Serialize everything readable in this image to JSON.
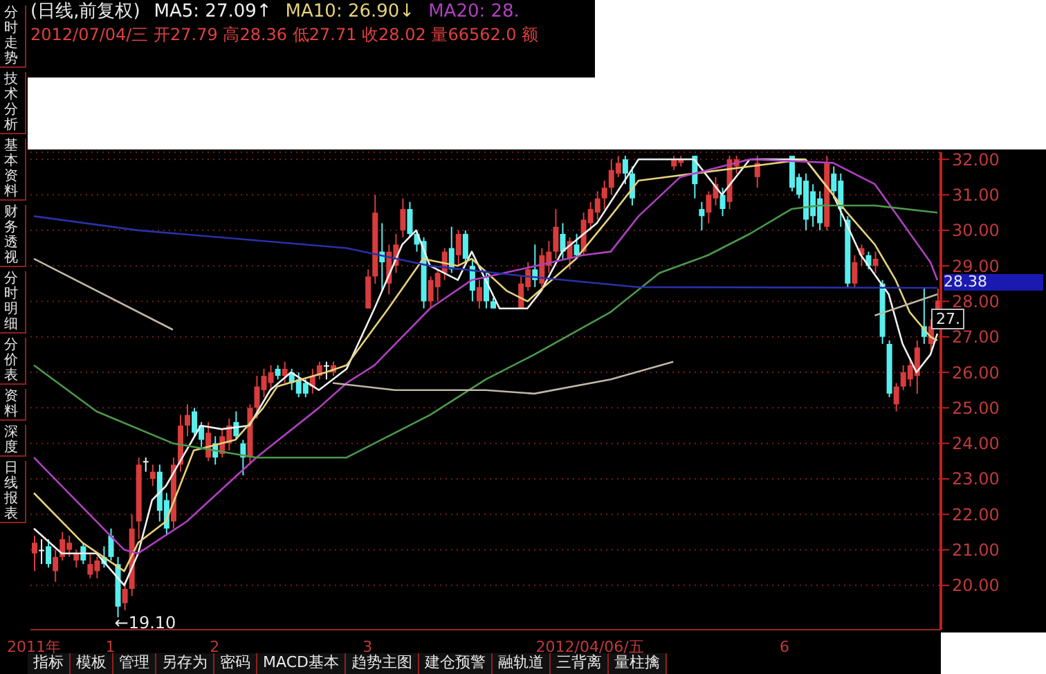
{
  "chart_data": {
    "type": "candlestick",
    "title": "(日线,前复权)",
    "subtitle": "2012/07/04/三 开27.79 高28.36 低27.71 收28.02 量66562.0 额",
    "annotations": [
      "MA5: 27.09↑",
      "MA10: 26.90↓",
      "MA20: 28.",
      "←19.10",
      "28.38",
      "27.",
      "分时走势",
      "技术分析",
      "基本资料",
      "财务透视",
      "分时明细",
      "分价表",
      "资料",
      "深度",
      "日线报表",
      "指标",
      "模板",
      "管理",
      "另存为",
      "密码",
      "MACD基本",
      "趋势主图",
      "建仓预警",
      "融轨道",
      "三背离",
      "量柱擒"
    ],
    "categories": [
      "2011年",
      null,
      null,
      null,
      null,
      null,
      null,
      null,
      null,
      null,
      null,
      "1",
      null,
      null,
      null,
      null,
      null,
      null,
      null,
      null,
      null,
      null,
      null,
      null,
      null,
      null,
      "2",
      null,
      null,
      null,
      null,
      null,
      null,
      null,
      null,
      null,
      null,
      null,
      null,
      null,
      null,
      null,
      null,
      null,
      null,
      null,
      null,
      null,
      "3",
      null,
      null,
      null,
      null,
      null,
      null,
      null,
      null,
      null,
      null,
      null,
      null,
      null,
      null,
      null,
      null,
      null,
      null,
      null,
      null,
      null,
      null,
      null,
      null,
      null,
      null,
      null,
      null,
      null,
      null,
      null,
      "2012/04/06/五",
      null,
      null,
      null,
      null,
      null,
      null,
      null,
      null,
      null,
      null,
      null,
      null,
      null,
      null,
      null,
      null,
      null,
      null,
      null,
      null,
      null,
      null,
      null,
      null,
      null,
      null,
      null,
      "6",
      null,
      null,
      null,
      null,
      null,
      null,
      null,
      null,
      null,
      null,
      null,
      null,
      null,
      null,
      null,
      null,
      null,
      null,
      null,
      null,
      null,
      null
    ],
    "ohlc": [
      [
        20.9,
        21.4,
        20.4,
        21.2
      ],
      [
        21.0,
        21.3,
        20.6,
        21.0
      ],
      [
        21.1,
        21.3,
        20.5,
        20.6
      ],
      [
        20.4,
        21.0,
        20.1,
        20.8
      ],
      [
        20.8,
        21.5,
        20.7,
        21.3
      ],
      [
        21.0,
        21.4,
        20.8,
        21.2
      ],
      [
        20.7,
        21.0,
        20.5,
        20.9
      ],
      [
        21.1,
        21.2,
        20.6,
        20.7
      ],
      [
        20.3,
        20.9,
        20.2,
        20.6
      ],
      [
        20.4,
        20.8,
        20.2,
        20.7
      ],
      [
        20.8,
        21.1,
        20.5,
        20.6
      ],
      [
        21.4,
        21.6,
        20.7,
        20.8
      ],
      [
        20.6,
        20.8,
        19.1,
        19.4
      ],
      [
        19.5,
        20.1,
        19.3,
        19.9
      ],
      [
        19.9,
        22.0,
        19.7,
        21.6
      ],
      [
        21.8,
        23.6,
        21.3,
        23.4
      ],
      [
        23.5,
        23.6,
        23.2,
        23.5
      ],
      [
        23.0,
        23.4,
        22.8,
        23.2
      ],
      [
        23.2,
        23.4,
        21.8,
        22.1
      ],
      [
        22.4,
        22.6,
        21.4,
        21.6
      ],
      [
        21.8,
        23.6,
        21.6,
        23.4
      ],
      [
        23.4,
        24.8,
        23.2,
        24.5
      ],
      [
        24.5,
        25.1,
        24.2,
        24.8
      ],
      [
        24.9,
        25.0,
        24.2,
        24.3
      ],
      [
        24.5,
        24.6,
        23.9,
        24.1
      ],
      [
        23.6,
        24.6,
        23.5,
        24.3
      ],
      [
        24.0,
        24.2,
        23.4,
        23.6
      ],
      [
        23.7,
        24.4,
        23.6,
        24.2
      ],
      [
        24.0,
        24.7,
        23.8,
        24.5
      ],
      [
        24.6,
        24.9,
        24.1,
        24.2
      ],
      [
        24.0,
        24.1,
        23.1,
        23.6
      ],
      [
        23.6,
        25.1,
        23.4,
        25.0
      ],
      [
        25.0,
        25.9,
        24.7,
        25.6
      ],
      [
        25.5,
        26.1,
        25.3,
        25.9
      ],
      [
        25.7,
        26.2,
        25.5,
        26.0
      ],
      [
        26.1,
        26.2,
        25.8,
        25.9
      ],
      [
        25.9,
        26.3,
        25.7,
        26.1
      ],
      [
        26.0,
        26.1,
        25.5,
        25.7
      ],
      [
        25.8,
        26.0,
        25.3,
        25.4
      ],
      [
        25.7,
        25.8,
        25.3,
        25.4
      ],
      [
        25.6,
        26.1,
        25.4,
        25.9
      ],
      [
        25.9,
        26.3,
        25.8,
        26.2
      ],
      [
        26.2,
        26.3,
        25.8,
        26.2
      ],
      [
        26.0,
        26.3,
        25.9,
        26.2
      ],
      null,
      null,
      null,
      null,
      [
        27.8,
        28.9,
        27.8,
        28.7
      ],
      [
        28.7,
        31.0,
        28.5,
        30.5
      ],
      [
        29.4,
        30.2,
        28.3,
        29.1
      ],
      [
        28.5,
        29.6,
        28.2,
        29.4
      ],
      [
        29.0,
        29.9,
        28.8,
        29.6
      ],
      [
        30.0,
        30.9,
        29.8,
        30.6
      ],
      [
        30.6,
        30.8,
        29.8,
        29.9
      ],
      [
        29.9,
        30.0,
        29.4,
        29.6
      ],
      [
        29.7,
        29.8,
        27.8,
        28.0
      ],
      [
        28.0,
        28.7,
        27.8,
        28.6
      ],
      [
        28.4,
        28.9,
        28.0,
        28.8
      ],
      [
        28.8,
        29.5,
        28.6,
        29.4
      ],
      [
        29.5,
        30.1,
        28.8,
        28.9
      ],
      [
        29.3,
        30.0,
        29.0,
        29.9
      ],
      [
        29.9,
        30.0,
        29.1,
        29.2
      ],
      [
        29.0,
        29.2,
        28.0,
        28.3
      ],
      [
        28.0,
        28.6,
        27.8,
        28.4
      ],
      [
        28.7,
        28.8,
        27.8,
        28.0
      ],
      [
        28.0,
        28.1,
        27.8,
        27.8
      ],
      null,
      null,
      null,
      [
        27.8,
        28.7,
        27.8,
        28.5
      ],
      [
        28.4,
        29.1,
        28.3,
        28.9
      ],
      [
        28.9,
        29.6,
        28.4,
        28.6
      ],
      [
        28.5,
        29.5,
        28.4,
        29.3
      ],
      [
        29.0,
        29.7,
        28.8,
        29.4
      ],
      [
        29.4,
        30.6,
        29.2,
        30.1
      ],
      [
        29.9,
        30.2,
        29.2,
        29.4
      ],
      [
        29.2,
        29.8,
        28.9,
        29.7
      ],
      [
        29.6,
        29.9,
        29.2,
        29.3
      ],
      [
        29.4,
        30.5,
        29.3,
        30.3
      ],
      [
        30.2,
        30.8,
        30.0,
        30.6
      ],
      [
        30.5,
        31.1,
        30.3,
        30.9
      ],
      [
        30.9,
        31.4,
        30.6,
        31.2
      ],
      [
        31.2,
        32.0,
        31.0,
        31.7
      ],
      [
        31.6,
        32.1,
        31.5,
        31.9
      ],
      [
        32.0,
        32.1,
        31.3,
        31.6
      ],
      [
        31.6,
        31.8,
        30.7,
        30.9
      ],
      null,
      null,
      null,
      null,
      null,
      [
        31.8,
        32.1,
        31.7,
        32.0
      ],
      [
        31.9,
        32.1,
        31.8,
        32.0
      ],
      null,
      [
        32.1,
        32.1,
        30.9,
        31.3
      ],
      [
        30.6,
        30.8,
        30.0,
        30.4
      ],
      [
        30.5,
        31.1,
        30.2,
        31.0
      ],
      [
        30.9,
        31.5,
        30.7,
        31.3
      ],
      [
        31.0,
        31.2,
        30.4,
        30.6
      ],
      [
        30.8,
        32.1,
        30.6,
        32.0
      ],
      [
        31.8,
        32.1,
        31.6,
        32.0
      ],
      null,
      null,
      [
        31.5,
        32.1,
        31.2,
        31.9
      ],
      null,
      null,
      null,
      null,
      [
        32.1,
        32.1,
        31.1,
        31.2
      ],
      [
        31.5,
        31.6,
        30.9,
        31.0
      ],
      [
        31.4,
        31.6,
        30.0,
        30.3
      ],
      [
        31.1,
        31.3,
        30.1,
        30.4
      ],
      [
        30.9,
        31.1,
        30.0,
        30.2
      ],
      [
        30.1,
        32.1,
        30.0,
        31.9
      ],
      [
        31.6,
        31.8,
        30.9,
        31.1
      ],
      [
        31.4,
        31.6,
        30.1,
        30.6
      ],
      [
        30.3,
        30.4,
        28.4,
        28.5
      ],
      [
        28.5,
        29.3,
        28.4,
        29.1
      ],
      [
        29.3,
        29.6,
        29.0,
        29.5
      ],
      [
        29.3,
        29.4,
        28.9,
        29.0
      ],
      [
        29.0,
        29.4,
        28.8,
        29.2
      ],
      [
        28.5,
        28.6,
        26.8,
        27.0
      ],
      [
        26.8,
        26.9,
        25.3,
        25.4
      ],
      [
        25.1,
        25.7,
        24.9,
        25.6
      ],
      [
        25.6,
        26.2,
        25.5,
        26.0
      ],
      [
        25.8,
        26.4,
        25.6,
        26.2
      ],
      [
        25.9,
        26.9,
        25.4,
        26.7
      ],
      [
        27.3,
        28.4,
        26.8,
        27.0
      ],
      [
        26.8,
        27.5,
        26.6,
        27.3
      ],
      [
        27.79,
        28.36,
        27.71,
        28.02
      ]
    ],
    "series": [
      {
        "type": "line",
        "color": "#f0f0f0",
        "values": [
          21.6,
          null,
          null,
          null,
          20.9,
          null,
          null,
          null,
          null,
          20.9,
          null,
          null,
          null,
          20.0,
          null,
          20.9,
          null,
          22.4,
          null,
          22.8,
          null,
          null,
          null,
          null,
          24.5,
          null,
          null,
          24.4,
          null,
          null,
          null,
          24.5,
          null,
          null,
          25.5,
          null,
          null,
          26.0,
          null,
          null,
          null,
          25.5,
          null,
          null,
          null,
          26.1,
          null,
          null,
          null,
          27.8,
          null,
          null,
          null,
          29.6,
          null,
          30.0,
          null,
          29.0,
          null,
          null,
          null,
          28.6,
          null,
          29.4,
          null,
          28.6,
          null,
          27.8,
          null,
          null,
          null,
          27.8,
          null,
          28.3,
          null,
          null,
          29.4,
          null,
          null,
          null,
          null,
          30.2,
          null,
          null,
          null,
          31.4,
          null,
          32.0,
          null,
          null,
          null,
          null,
          null,
          null,
          null,
          32.0,
          null,
          null,
          null,
          31.0,
          null,
          null,
          null,
          32.0,
          null,
          null,
          null,
          null,
          null,
          null,
          null,
          32.0,
          null,
          null,
          null,
          31.0,
          null,
          null,
          null,
          29.3,
          null,
          null,
          null,
          28.2,
          null,
          26.8,
          null,
          26.0,
          null,
          26.5,
          27.09
        ]
      },
      {
        "type": "line",
        "color": "#e6d27a",
        "values": [
          22.6,
          null,
          null,
          null,
          null,
          null,
          null,
          21.2,
          null,
          null,
          null,
          null,
          null,
          20.4,
          null,
          21.2,
          null,
          null,
          null,
          21.8,
          null,
          null,
          null,
          23.8,
          null,
          null,
          null,
          null,
          null,
          24.1,
          null,
          null,
          null,
          25.0,
          null,
          25.6,
          null,
          null,
          null,
          null,
          null,
          null,
          26.0,
          null,
          null,
          26.2,
          null,
          null,
          null,
          null,
          null,
          27.8,
          null,
          null,
          null,
          null,
          29.2,
          null,
          null,
          null,
          null,
          29.0,
          null,
          29.2,
          null,
          null,
          null,
          null,
          28.3,
          null,
          null,
          28.0,
          null,
          null,
          null,
          null,
          null,
          null,
          29.2,
          null,
          null,
          null,
          null,
          30.4,
          null,
          null,
          null,
          31.4,
          null,
          null,
          null,
          null,
          null,
          null,
          null,
          null,
          null,
          null,
          null,
          null,
          null,
          null,
          null,
          null,
          null,
          null,
          null,
          null,
          null,
          null,
          null,
          32.0,
          null,
          null,
          null,
          null,
          null,
          30.5,
          null,
          null,
          null,
          29.6,
          null,
          null,
          28.6,
          null,
          27.7,
          null,
          null,
          27.0,
          26.9
        ]
      },
      {
        "type": "line",
        "color": "#b040c0",
        "values": [
          23.6,
          null,
          null,
          null,
          null,
          null,
          null,
          null,
          null,
          null,
          null,
          null,
          null,
          21.0,
          null,
          20.9,
          null,
          null,
          null,
          null,
          null,
          null,
          21.8,
          null,
          null,
          null,
          null,
          null,
          null,
          null,
          null,
          null,
          23.6,
          null,
          null,
          null,
          null,
          null,
          null,
          null,
          null,
          25.0,
          null,
          null,
          null,
          25.7,
          null,
          null,
          null,
          26.2,
          null,
          null,
          null,
          null,
          null,
          null,
          null,
          27.8,
          null,
          null,
          null,
          null,
          null,
          28.6,
          null,
          null,
          null,
          null,
          null,
          null,
          28.9,
          null,
          null,
          null,
          null,
          null,
          null,
          null,
          null,
          29.3,
          null,
          null,
          null,
          29.4,
          null,
          null,
          null,
          30.4,
          null,
          null,
          null,
          null,
          null,
          31.5,
          null,
          null,
          null,
          null,
          null,
          null,
          null,
          null,
          null,
          32.0,
          null,
          null,
          null,
          null,
          null,
          null,
          null,
          null,
          null,
          null,
          null,
          31.9,
          null,
          null,
          null,
          null,
          null,
          31.3,
          null,
          null,
          null,
          30.2,
          null,
          null,
          null,
          29.1,
          28.6
        ]
      },
      {
        "type": "line",
        "color": "#4c9a4c",
        "values": [
          26.2,
          null,
          null,
          null,
          null,
          null,
          null,
          null,
          null,
          24.9,
          null,
          null,
          null,
          null,
          null,
          null,
          null,
          null,
          null,
          null,
          24.0,
          null,
          null,
          null,
          null,
          null,
          null,
          null,
          null,
          null,
          null,
          null,
          23.6,
          null,
          null,
          null,
          null,
          null,
          null,
          null,
          null,
          null,
          null,
          null,
          null,
          23.6,
          null,
          null,
          null,
          null,
          null,
          null,
          null,
          null,
          null,
          null,
          null,
          24.8,
          null,
          null,
          null,
          null,
          null,
          null,
          null,
          25.8,
          null,
          null,
          null,
          null,
          null,
          null,
          26.5,
          null,
          null,
          null,
          null,
          null,
          null,
          null,
          null,
          null,
          null,
          27.7,
          null,
          null,
          null,
          null,
          null,
          null,
          28.8,
          null,
          null,
          null,
          null,
          null,
          null,
          29.3,
          null,
          null,
          null,
          null,
          null,
          29.9,
          null,
          null,
          null,
          null,
          null,
          30.6,
          null,
          null,
          null,
          30.7,
          null,
          null,
          null,
          null,
          null,
          null,
          null,
          30.7,
          null,
          null,
          null,
          null,
          null,
          null,
          null,
          null,
          30.5
        ]
      },
      {
        "type": "line",
        "color": "#2a30a8",
        "values": [
          30.4,
          null,
          null,
          null,
          null,
          null,
          null,
          null,
          null,
          null,
          null,
          null,
          null,
          null,
          null,
          30.0,
          null,
          null,
          null,
          null,
          null,
          null,
          null,
          null,
          null,
          null,
          null,
          null,
          null,
          null,
          null,
          null,
          null,
          null,
          null,
          null,
          null,
          null,
          null,
          null,
          null,
          null,
          null,
          null,
          null,
          29.5,
          null,
          null,
          null,
          null,
          null,
          null,
          null,
          null,
          null,
          null,
          null,
          29.0,
          null,
          null,
          null,
          null,
          null,
          null,
          null,
          null,
          null,
          null,
          null,
          null,
          null,
          28.7,
          null,
          null,
          null,
          null,
          null,
          null,
          null,
          null,
          null,
          null,
          null,
          null,
          null,
          null,
          null,
          28.4,
          null,
          null,
          null,
          null,
          null,
          null,
          null,
          null,
          null,
          null,
          null,
          null,
          null,
          null,
          null,
          null,
          null,
          null,
          null,
          null,
          null,
          null,
          null,
          null,
          null,
          null,
          null,
          null,
          null,
          null,
          null,
          null,
          null,
          null,
          null,
          null,
          null,
          null,
          null,
          null,
          null,
          null,
          28.38
        ]
      },
      {
        "type": "line",
        "color": "#bfb6a6",
        "values": [
          29.2,
          null,
          null,
          null,
          null,
          null,
          null,
          null,
          null,
          null,
          null,
          null,
          null,
          null,
          null,
          null,
          null,
          null,
          null,
          null,
          27.2,
          null,
          null,
          null,
          null,
          null,
          null,
          null,
          null,
          null,
          null,
          null,
          null,
          null,
          null,
          null,
          null,
          null,
          null,
          null,
          null,
          null,
          null,
          null,
          null,
          null,
          null,
          null,
          null,
          null,
          null,
          null,
          null,
          null,
          null,
          null,
          null,
          null,
          null,
          null,
          null,
          null,
          null,
          null,
          null,
          null,
          null,
          null,
          null,
          null,
          null,
          null,
          null,
          null,
          null,
          null,
          null,
          null,
          null,
          null,
          null,
          null,
          null,
          null,
          null,
          null,
          null,
          null,
          null,
          null,
          null,
          null,
          null,
          null,
          null,
          null,
          null,
          null,
          null,
          null,
          null,
          null,
          null,
          null,
          null,
          null,
          null,
          null,
          null,
          null,
          null,
          null,
          null,
          null,
          null,
          null,
          null,
          null,
          null,
          null,
          null,
          null,
          null,
          null,
          null,
          null,
          null,
          null,
          null,
          null,
          null
        ]
      },
      {
        "type": "line",
        "color": "#bfb6a6",
        "values": [
          null,
          null,
          null,
          null,
          null,
          null,
          null,
          null,
          null,
          null,
          null,
          null,
          null,
          null,
          null,
          null,
          null,
          null,
          null,
          null,
          null,
          null,
          null,
          null,
          null,
          null,
          null,
          null,
          null,
          null,
          null,
          null,
          null,
          null,
          null,
          null,
          null,
          null,
          null,
          null,
          null,
          null,
          null,
          25.7,
          null,
          null,
          null,
          null,
          null,
          null,
          null,
          null,
          25.5,
          null,
          null,
          null,
          null,
          null,
          null,
          null,
          null,
          null,
          null,
          null,
          null,
          25.5,
          null,
          null,
          null,
          null,
          null,
          null,
          25.4,
          null,
          null,
          null,
          null,
          null,
          null,
          null,
          null,
          null,
          null,
          25.8,
          null,
          null,
          null,
          null,
          null,
          null,
          null,
          null,
          26.3,
          null,
          null,
          null,
          null,
          null,
          null,
          null,
          null,
          null,
          null,
          null,
          null,
          null,
          null,
          null,
          null,
          null,
          null,
          null,
          null,
          null,
          null,
          null,
          null,
          null,
          null,
          null,
          null,
          null,
          null,
          null,
          null,
          null,
          null,
          null,
          null,
          null,
          null
        ]
      },
      {
        "type": "line",
        "color": "#bfb6a6",
        "values": [
          null,
          null,
          null,
          null,
          null,
          null,
          null,
          null,
          null,
          null,
          null,
          null,
          null,
          null,
          null,
          null,
          null,
          null,
          null,
          null,
          null,
          null,
          null,
          null,
          null,
          null,
          null,
          null,
          null,
          null,
          null,
          null,
          null,
          null,
          null,
          null,
          null,
          null,
          null,
          null,
          null,
          null,
          null,
          null,
          null,
          null,
          null,
          null,
          null,
          null,
          null,
          null,
          null,
          null,
          null,
          null,
          null,
          null,
          null,
          null,
          null,
          null,
          null,
          null,
          null,
          null,
          null,
          null,
          null,
          null,
          null,
          null,
          null,
          null,
          null,
          null,
          null,
          null,
          null,
          null,
          null,
          null,
          null,
          null,
          null,
          null,
          null,
          null,
          null,
          null,
          null,
          null,
          null,
          null,
          null,
          null,
          null,
          null,
          null,
          null,
          null,
          null,
          null,
          null,
          null,
          null,
          null,
          null,
          null,
          null,
          null,
          null,
          null,
          null,
          null,
          null,
          null,
          null,
          null,
          null,
          null,
          27.6,
          null,
          null,
          null,
          null,
          null,
          null,
          null,
          null,
          28.2
        ]
      }
    ],
    "ylim": [
      18.75,
      32.2
    ],
    "yticks": [
      {
        "value": 20,
        "label": "20.00"
      },
      {
        "value": 21,
        "label": "21.00"
      },
      {
        "value": 22,
        "label": "22.00"
      },
      {
        "value": 23,
        "label": "23.00"
      },
      {
        "value": 24,
        "label": "24.00"
      },
      {
        "value": 25,
        "label": "25.00"
      },
      {
        "value": 26,
        "label": "26.00"
      },
      {
        "value": 27,
        "label": "27.00"
      },
      {
        "value": 28,
        "label": "28.00"
      },
      {
        "value": 29,
        "label": "29.00"
      },
      {
        "value": 30,
        "label": "30.00"
      },
      {
        "value": 31,
        "label": "31.00"
      },
      {
        "value": 32,
        "label": "32.00"
      }
    ],
    "grid": "y"
  }
}
